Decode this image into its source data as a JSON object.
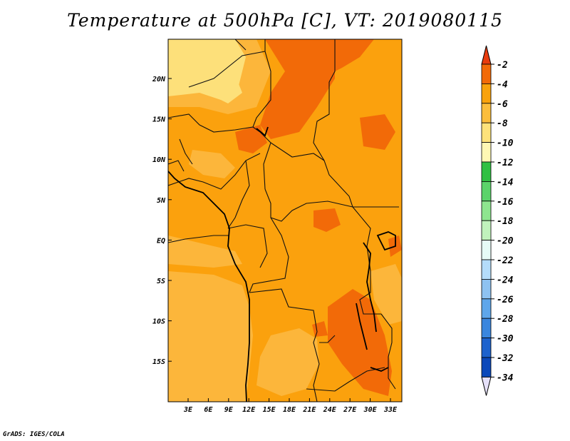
{
  "title": "Temperature at 500hPa [C], VT: 2019080115",
  "credit": "GrADS: IGES/COLA",
  "map": {
    "lat_labels": [
      "20N",
      "15N",
      "10N",
      "5N",
      "EQ",
      "5S",
      "10S",
      "15S"
    ],
    "lon_labels": [
      "3E",
      "6E",
      "9E",
      "12E",
      "15E",
      "18E",
      "21E",
      "24E",
      "27E",
      "30E",
      "33E"
    ],
    "base_color": "#fba10d"
  },
  "colorbar": {
    "labels": [
      "-2",
      "-4",
      "-6",
      "-8",
      "-10",
      "-12",
      "-14",
      "-16",
      "-18",
      "-20",
      "-22",
      "-24",
      "-26",
      "-28",
      "-30",
      "-32",
      "-34"
    ],
    "colors": [
      "#e83c0e",
      "#f26a08",
      "#f9a20c",
      "#fbbd3c",
      "#fde27b",
      "#fef7b4",
      "#30c043",
      "#5bd36a",
      "#8ee58f",
      "#c0f2bc",
      "#e6fbf7",
      "#b4dcfa",
      "#8ec2f1",
      "#5ea6ea",
      "#3a86de",
      "#1d62cd",
      "#0b48ba",
      "#061b7a",
      "#e6e1fa"
    ]
  }
}
